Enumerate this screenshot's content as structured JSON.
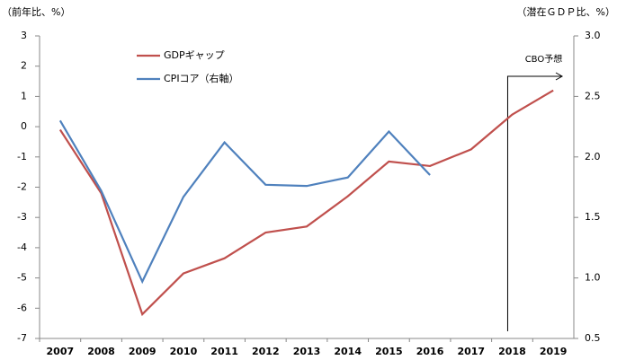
{
  "chart_data": {
    "type": "line",
    "y_label": "（前年比、%）",
    "y2_label": "（潜在ＧＤＰ比、%）",
    "annotation": "CBO予想",
    "categories": [
      "2007",
      "2008",
      "2009",
      "2010",
      "2011",
      "2012",
      "2013",
      "2014",
      "2015",
      "2016",
      "2017",
      "2018",
      "2019"
    ],
    "series": [
      {
        "name": "GDPギャップ",
        "color": "#c0504d",
        "values": [
          -0.1,
          -2.2,
          -6.2,
          -4.85,
          -4.35,
          -3.5,
          -3.3,
          -2.3,
          -1.15,
          -1.3,
          -0.75,
          0.4,
          1.2
        ]
      },
      {
        "name": "CPIコア（右軸）",
        "color": "#4f81bd",
        "axis": "y2",
        "values": [
          2.3,
          1.72,
          0.97,
          1.67,
          2.12,
          1.77,
          1.76,
          1.83,
          2.21,
          1.85,
          null,
          null,
          null
        ]
      }
    ],
    "ylim": [
      -7,
      3
    ],
    "yticks": [
      -7,
      -6,
      -5,
      -4,
      -3,
      -2,
      -1,
      0,
      1,
      2,
      3
    ],
    "y2lim": [
      0.5,
      3
    ],
    "y2ticks": [
      0.5,
      {
        "value": 1,
        "label": "1.0"
      },
      1.5,
      {
        "value": 2,
        "label": "2.0"
      },
      2.5,
      {
        "value": 3,
        "label": "3.0"
      }
    ],
    "grid": false
  }
}
